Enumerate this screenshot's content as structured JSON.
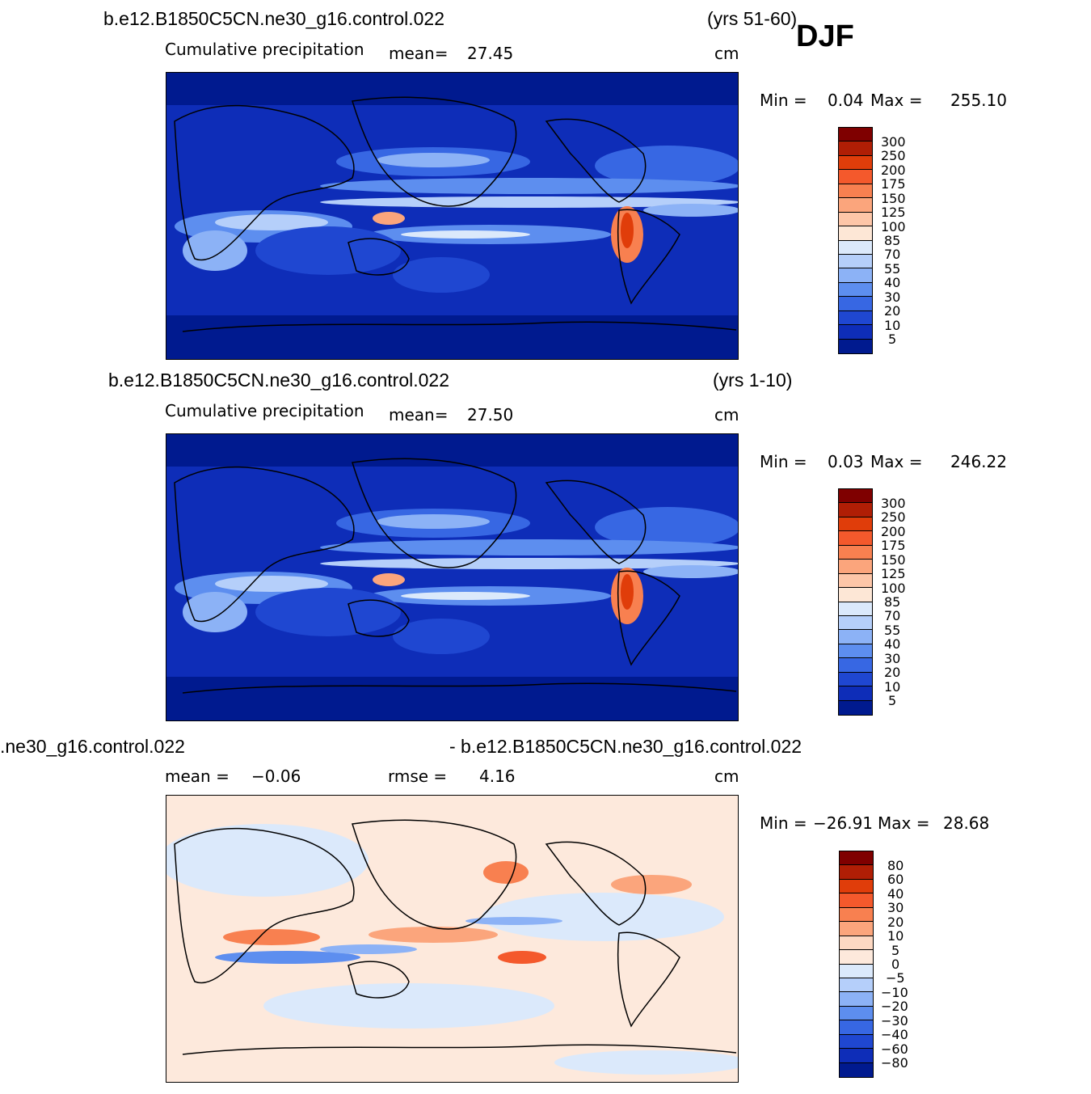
{
  "season": "DJF",
  "panels": [
    {
      "case": "b.e12.B1850C5CN.ne30_g16.control.022",
      "years": "(yrs 51-60)",
      "field": "Cumulative precipitation",
      "stat1_label": "mean=",
      "stat1_value": "27.45",
      "stat2_label": "",
      "stat2_value": "",
      "units": "cm",
      "min_label": "Min  =",
      "min_value": "0.04",
      "max_label": "Max  =",
      "max_value": "255.10",
      "levels": [
        "300",
        "250",
        "200",
        "175",
        "150",
        "125",
        "100",
        "85",
        "70",
        "55",
        "40",
        "30",
        "20",
        "10",
        "5"
      ]
    },
    {
      "case": "b.e12.B1850C5CN.ne30_g16.control.022",
      "years": "(yrs 1-10)",
      "field": "Cumulative precipitation",
      "stat1_label": "mean=",
      "stat1_value": "27.50",
      "stat2_label": "",
      "stat2_value": "",
      "units": "cm",
      "min_label": "Min  =",
      "min_value": "0.03",
      "max_label": "Max  =",
      "max_value": "246.22",
      "levels": [
        "300",
        "250",
        "200",
        "175",
        "150",
        "125",
        "100",
        "85",
        "70",
        "55",
        "40",
        "30",
        "20",
        "10",
        "5"
      ]
    },
    {
      "case": "\u0004.ne30_g16.control.022",
      "case_right": "- b.e12.B1850C5CN.ne30_g16.control.022",
      "stat1_label": "mean  =",
      "stat1_value": "−0.06",
      "stat2_label": "rmse  =",
      "stat2_value": "4.16",
      "units": "cm",
      "min_label": "Min  =",
      "min_value": "−26.91",
      "max_label": "Max  =",
      "max_value": "28.68",
      "levels": [
        "80",
        "60",
        "40",
        "30",
        "20",
        "10",
        "5",
        "0",
        "−5",
        "−10",
        "−20",
        "−30",
        "−40",
        "−60",
        "−80"
      ]
    }
  ],
  "colors": {
    "precip": [
      "#7f0000",
      "#b01e05",
      "#e03d0a",
      "#f4592c",
      "#f88050",
      "#fba57c",
      "#fdc6a8",
      "#fde7d6",
      "#dbe9fb",
      "#b5cffa",
      "#8cb2f6",
      "#5d8eef",
      "#3767e3",
      "#1f47d1",
      "#0e2db8",
      "#001a8f"
    ],
    "diff": [
      "#7f0000",
      "#b01e05",
      "#e03d0a",
      "#f4592c",
      "#f88050",
      "#fba57c",
      "#fdd8c2",
      "#fde9dc",
      "#dbe9fb",
      "#b5cffa",
      "#8cb2f6",
      "#5d8eef",
      "#3767e3",
      "#1f47d1",
      "#0e2db8",
      "#001a8f"
    ]
  }
}
